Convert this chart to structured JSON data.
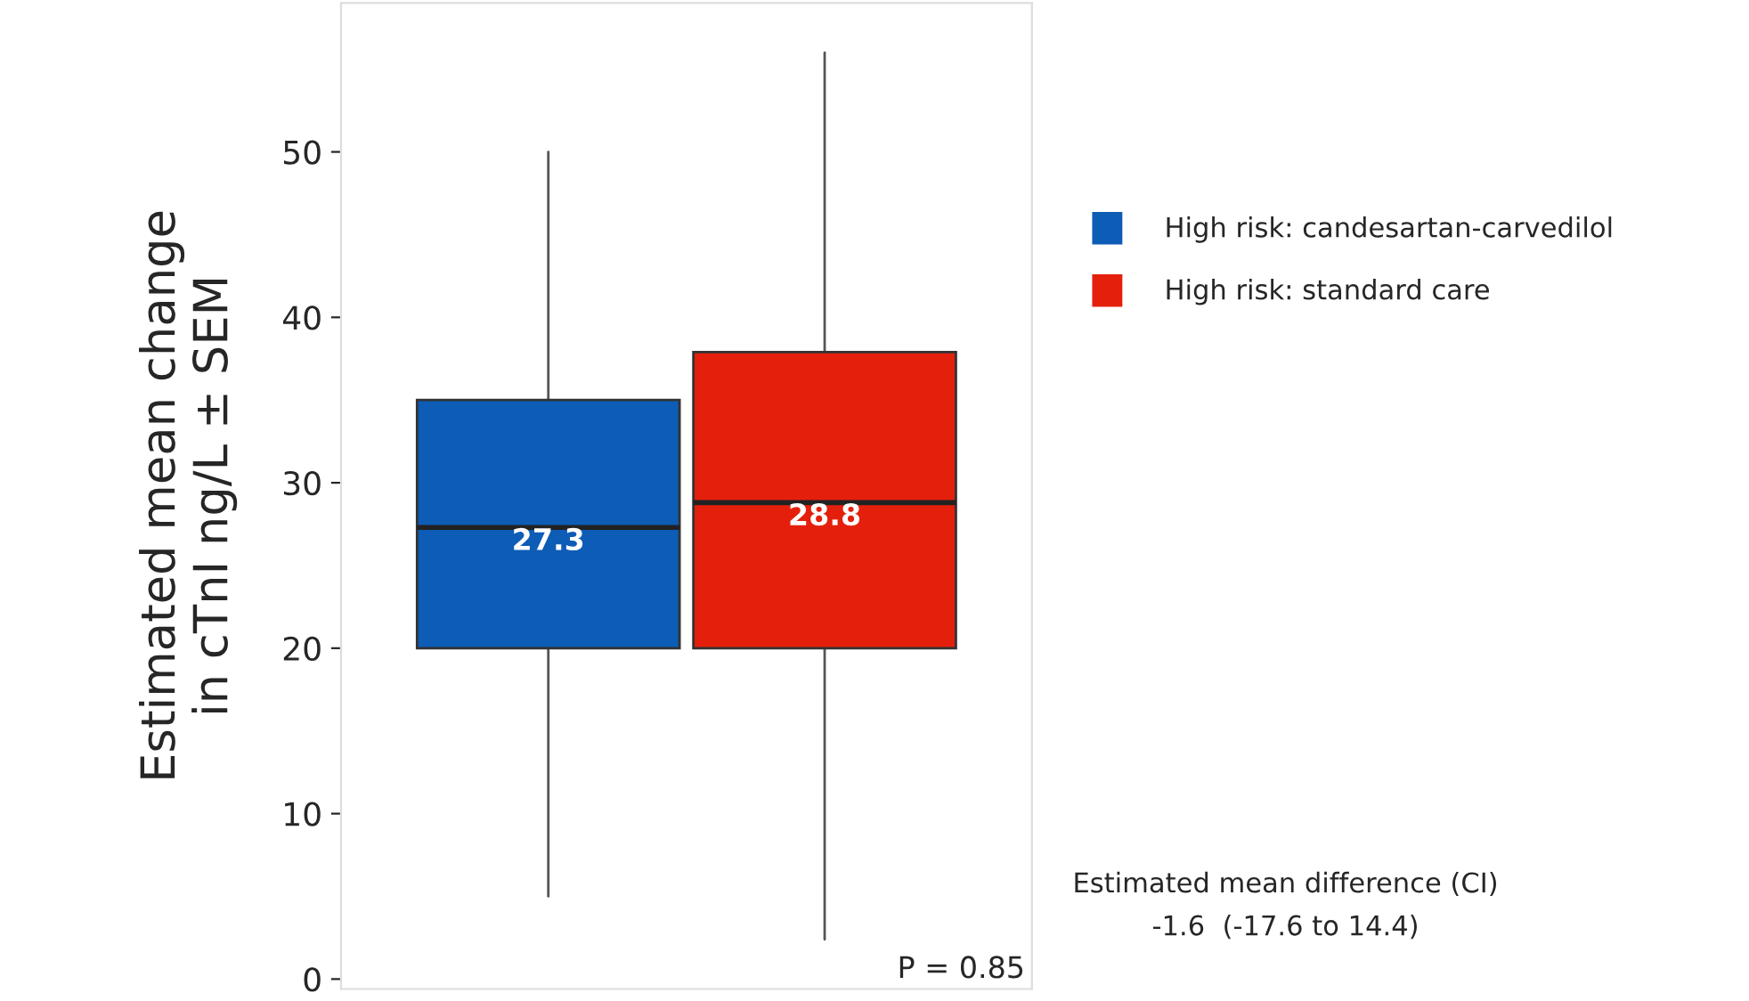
{
  "chart_data": {
    "type": "box",
    "ylabel": "Estimated mean change\nin cTnI ng/L ± SEM",
    "categories": [
      null
    ],
    "series": [
      {
        "name": "High risk: candesartan-carvedilol",
        "color": "#0d5cb6",
        "boxes": [
          {
            "low": 5,
            "q1": 20,
            "median": 27.3,
            "q3": 35,
            "high": 50
          }
        ],
        "value_labels": [
          "27.3"
        ]
      },
      {
        "name": "High risk: standard care",
        "color": "#e4200c",
        "boxes": [
          {
            "low": 2.4,
            "q1": 20,
            "median": 28.8,
            "q3": 37.9,
            "high": 56
          }
        ],
        "value_labels": [
          "28.8"
        ]
      }
    ],
    "ylim": [
      -0.6,
      59
    ],
    "yticks": [
      0,
      10,
      20,
      30,
      40,
      50
    ],
    "grid": false,
    "legend": "right",
    "tick_labels": "y",
    "annotations": [
      {
        "text": "P = 0.85"
      },
      {
        "text": "Estimated mean difference (CI)\n-1.6  (-17.6 to 14.4)"
      }
    ]
  }
}
